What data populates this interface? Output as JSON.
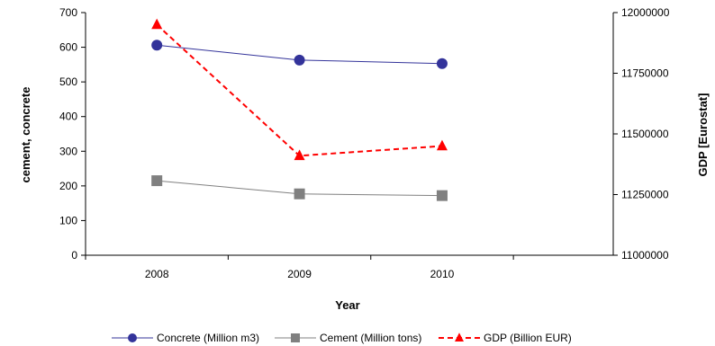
{
  "chart_data": {
    "type": "line",
    "title": "",
    "xlabel": "Year",
    "ylabel_left": "cement, concrete",
    "ylabel_right": "GDP [Eurostat]",
    "categories": [
      "2008",
      "2009",
      "2010"
    ],
    "ylim_left": [
      0,
      700
    ],
    "yticks_left": [
      "0",
      "100",
      "200",
      "300",
      "400",
      "500",
      "600",
      "700"
    ],
    "ylim_right": [
      11000000,
      12000000
    ],
    "yticks_right": [
      "11000000",
      "11250000",
      "11500000",
      "11750000",
      "12000000"
    ],
    "grid": false,
    "legend_position": "bottom",
    "series": [
      {
        "name": "Concrete (Million m3)",
        "axis": "left",
        "values": [
          606,
          563,
          553
        ],
        "color": "#33339a",
        "marker": "circle",
        "line": "solid"
      },
      {
        "name": "Cement (Million tons)",
        "axis": "left",
        "values": [
          215,
          177,
          172
        ],
        "color": "#808080",
        "marker": "square",
        "line": "solid"
      },
      {
        "name": "GDP (Billion EUR)",
        "axis": "right",
        "values": [
          11950000,
          11410000,
          11450000
        ],
        "color": "#ff0000",
        "marker": "triangle",
        "line": "dashed"
      }
    ]
  }
}
